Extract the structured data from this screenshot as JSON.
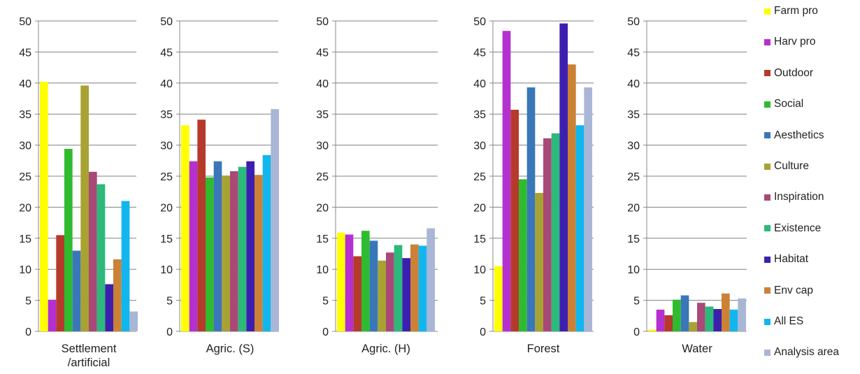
{
  "chart_data": [
    {
      "type": "bar",
      "title": "Settlement\n/artificial",
      "category": "Settlement\n/artificial",
      "ylim": [
        0,
        50
      ],
      "ticks": [
        0,
        5,
        10,
        15,
        20,
        25,
        30,
        35,
        40,
        45,
        50
      ],
      "values": [
        40.2,
        5.1,
        15.5,
        29.4,
        13.0,
        39.6,
        25.7,
        23.7,
        7.6,
        11.6,
        21.0,
        3.2
      ]
    },
    {
      "type": "bar",
      "category": "Agric. (S)",
      "ylim": [
        0,
        50
      ],
      "ticks": [
        0,
        5,
        10,
        15,
        20,
        25,
        30,
        35,
        40,
        45,
        50
      ],
      "values": [
        33.2,
        27.4,
        34.1,
        24.8,
        27.4,
        25.1,
        25.8,
        26.5,
        27.4,
        25.2,
        28.4,
        35.8
      ]
    },
    {
      "type": "bar",
      "category": "Agric. (H)",
      "ylim": [
        0,
        50
      ],
      "ticks": [
        0,
        5,
        10,
        15,
        20,
        25,
        30,
        35,
        40,
        45,
        50
      ],
      "values": [
        15.9,
        15.6,
        12.1,
        16.2,
        14.6,
        11.4,
        12.7,
        13.9,
        11.8,
        14.0,
        13.8,
        16.6
      ]
    },
    {
      "type": "bar",
      "category": "Forest",
      "ylim": [
        0,
        50
      ],
      "ticks": [
        0,
        5,
        10,
        15,
        20,
        25,
        30,
        35,
        40,
        45,
        50
      ],
      "values": [
        10.5,
        48.4,
        35.7,
        24.5,
        39.3,
        22.3,
        31.1,
        31.9,
        49.6,
        43.0,
        33.2,
        39.3
      ]
    },
    {
      "type": "bar",
      "category": "Water",
      "ylim": [
        0,
        50
      ],
      "ticks": [
        0,
        5,
        10,
        15,
        20,
        25,
        30,
        35,
        40,
        45,
        50
      ],
      "values": [
        0.3,
        3.5,
        2.6,
        5.1,
        5.8,
        1.5,
        4.6,
        4.0,
        3.6,
        6.1,
        3.5,
        5.3
      ]
    }
  ],
  "series": [
    {
      "name": "Farm pro",
      "color": "#ffff00"
    },
    {
      "name": "Harv pro",
      "color": "#b530d0"
    },
    {
      "name": "Outdoor",
      "color": "#b63a2b"
    },
    {
      "name": "Social",
      "color": "#2fbb2f"
    },
    {
      "name": "Aesthetics",
      "color": "#3a77b9"
    },
    {
      "name": "Culture",
      "color": "#a8a232"
    },
    {
      "name": "Inspiration",
      "color": "#a84978"
    },
    {
      "name": "Existence",
      "color": "#2bba7a"
    },
    {
      "name": "Habitat",
      "color": "#3d1fb0"
    },
    {
      "name": "Env cap",
      "color": "#cb8136"
    },
    {
      "name": "All ES",
      "color": "#11b6ee"
    },
    {
      "name": "Analysis area",
      "color": "#a9b6d6"
    }
  ]
}
